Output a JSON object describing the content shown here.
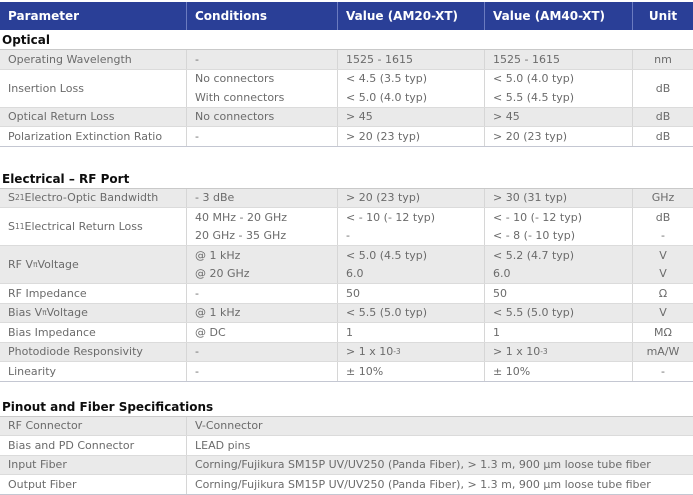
{
  "colors": {
    "header_bg": "#2A3F97",
    "header_divider": "#6B7BC0",
    "header_text": "#FFFFFF",
    "row_shade": "#EAEAEA",
    "row_border": "#D6D6D6",
    "body_text": "#6B6B6B",
    "section_title_text": "#0D0D0D"
  },
  "table": {
    "columns": [
      {
        "label": "Parameter"
      },
      {
        "label": "Conditions"
      },
      {
        "label": "Value (AM20-XT)"
      },
      {
        "label": "Value (AM40-XT)"
      },
      {
        "label": "Unit"
      }
    ],
    "sections": [
      {
        "title": "Optical",
        "rows": [
          {
            "parameter": "Operating Wavelength",
            "unit": "nm",
            "lines": [
              {
                "condition": "-",
                "am20": "1525 - 1615",
                "am40": "1525 - 1615"
              }
            ]
          },
          {
            "parameter": "Insertion Loss",
            "unit": "dB",
            "lines": [
              {
                "condition": "No connectors",
                "am20": "< 4.5 (3.5 typ)",
                "am40": "< 5.0 (4.0 typ)"
              },
              {
                "condition": "With connectors",
                "am20": "< 5.0 (4.0 typ)",
                "am40": "< 5.5 (4.5 typ)"
              }
            ]
          },
          {
            "parameter": "Optical Return Loss",
            "unit": "dB",
            "lines": [
              {
                "condition": "No connectors",
                "am20": "> 45",
                "am40": "> 45"
              }
            ]
          },
          {
            "parameter": "Polarization Extinction Ratio",
            "unit": "dB",
            "lines": [
              {
                "condition": "-",
                "am20": "> 20 (23 typ)",
                "am40": "> 20 (23 typ)"
              }
            ]
          }
        ]
      },
      {
        "title": "Electrical – RF Port",
        "rows": [
          {
            "parameter": [
              "S",
              {
                "sub": "21"
              },
              " Electro-Optic Bandwidth"
            ],
            "unit": "GHz",
            "lines": [
              {
                "condition": "- 3 dBe",
                "am20": "> 20 (23 typ)",
                "am40": "> 30 (31 typ)"
              }
            ]
          },
          {
            "parameter": [
              "S",
              {
                "sub": "11"
              },
              " Electrical Return Loss"
            ],
            "lines": [
              {
                "condition": "40 MHz - 20 GHz",
                "am20": "< - 10 (- 12 typ)",
                "am40": "< - 10 (- 12 typ)",
                "unit": "dB"
              },
              {
                "condition": "20 GHz - 35 GHz",
                "am20": "-",
                "am40": "< - 8 (- 10 typ)",
                "unit": "-"
              }
            ]
          },
          {
            "parameter": [
              "RF V",
              {
                "sub": "π"
              },
              " Voltage"
            ],
            "lines": [
              {
                "condition": "@ 1 kHz",
                "am20": "< 5.0 (4.5 typ)",
                "am40": "< 5.2 (4.7 typ)",
                "unit": "V"
              },
              {
                "condition": "@ 20 GHz",
                "am20": "6.0",
                "am40": "6.0",
                "unit": "V"
              }
            ]
          },
          {
            "parameter": "RF Impedance",
            "unit": "Ω",
            "lines": [
              {
                "condition": "-",
                "am20": "50",
                "am40": "50"
              }
            ]
          },
          {
            "parameter": [
              "Bias V",
              {
                "sub": "π"
              },
              " Voltage"
            ],
            "unit": "V",
            "lines": [
              {
                "condition": "@ 1 kHz",
                "am20": "< 5.5 (5.0 typ)",
                "am40": "< 5.5 (5.0 typ)"
              }
            ]
          },
          {
            "parameter": "Bias Impedance",
            "unit": "MΩ",
            "lines": [
              {
                "condition": "@ DC",
                "am20": "1",
                "am40": "1"
              }
            ]
          },
          {
            "parameter": "Photodiode Responsivity",
            "unit": "mA/W",
            "lines": [
              {
                "condition": "-",
                "am20": [
                  "> 1 x 10",
                  {
                    "sup": "-3"
                  }
                ],
                "am40": [
                  "> 1 x 10",
                  {
                    "sup": "-3"
                  }
                ]
              }
            ]
          },
          {
            "parameter": "Linearity",
            "unit": "-",
            "lines": [
              {
                "condition": "-",
                "am20": "± 10%",
                "am40": "± 10%"
              }
            ]
          }
        ]
      },
      {
        "title": "Pinout and Fiber Specifications",
        "two_col": true,
        "rows": [
          {
            "parameter": "RF Connector",
            "value": "V-Connector"
          },
          {
            "parameter": "Bias and PD Connector",
            "value": "LEAD pins"
          },
          {
            "parameter": "Input Fiber",
            "value": "Corning/Fujikura SM15P UV/UV250 (Panda Fiber), > 1.3 m, 900 µm loose tube fiber"
          },
          {
            "parameter": "Output Fiber",
            "value": "Corning/Fujikura SM15P UV/UV250 (Panda Fiber), > 1.3 m, 900 µm loose tube fiber"
          }
        ]
      }
    ]
  }
}
